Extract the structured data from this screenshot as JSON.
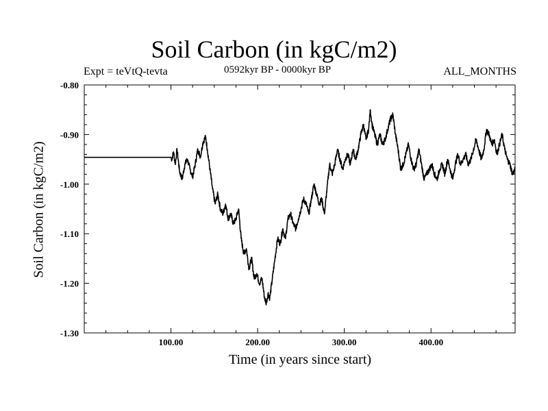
{
  "chart_data": {
    "type": "line",
    "title": "Soil Carbon (in kgC/m2)",
    "experiment_label": "Expt = teVtQ-tevta",
    "period_label": "0592kyr BP - 0000kyr BP",
    "months_label": "ALL_MONTHS",
    "xlabel": "Time (in years since start)",
    "ylabel": "Soil Carbon (in kgC/m2)",
    "xlim": [
      0,
      497
    ],
    "ylim": [
      -1.3,
      -0.8
    ],
    "x_ticks": [
      100,
      200,
      300,
      400
    ],
    "x_tick_labels": [
      "100.00",
      "200.00",
      "300.00",
      "400.00"
    ],
    "y_ticks": [
      -0.8,
      -0.9,
      -1.0,
      -1.1,
      -1.2,
      -1.3
    ],
    "y_tick_labels": [
      "-0.80",
      "-0.90",
      "-1.00",
      "-1.10",
      "-1.20",
      "-1.30"
    ],
    "grid": false,
    "series": [
      {
        "color": "#000000",
        "x": [
          0,
          100,
          101,
          103,
          105,
          107,
          110,
          113,
          116,
          119,
          122,
          125,
          128,
          131,
          134,
          137,
          140,
          142,
          145,
          148,
          151,
          154,
          157,
          160,
          163,
          166,
          169,
          172,
          175,
          178,
          181,
          184,
          187,
          190,
          193,
          196,
          199,
          202,
          205,
          208,
          210,
          212,
          214,
          217,
          220,
          223,
          226,
          229,
          232,
          235,
          238,
          241,
          244,
          247,
          250,
          253,
          256,
          259,
          262,
          265,
          268,
          271,
          274,
          277,
          280,
          283,
          286,
          289,
          292,
          295,
          298,
          301,
          304,
          307,
          310,
          313,
          316,
          319,
          322,
          325,
          328,
          330,
          332,
          335,
          338,
          341,
          344,
          347,
          350,
          353,
          356,
          359,
          362,
          365,
          368,
          371,
          374,
          377,
          380,
          383,
          386,
          389,
          392,
          395,
          398,
          401,
          404,
          407,
          410,
          413,
          416,
          419,
          422,
          425,
          428,
          431,
          434,
          437,
          440,
          443,
          446,
          449,
          452,
          455,
          458,
          461,
          464,
          467,
          470,
          473,
          476,
          479,
          482,
          485,
          488,
          491,
          494,
          497
        ],
        "y": [
          -0.946,
          -0.946,
          -0.95,
          -0.935,
          -0.96,
          -0.93,
          -0.975,
          -0.99,
          -0.96,
          -0.95,
          -0.97,
          -0.985,
          -0.96,
          -0.93,
          -0.945,
          -0.915,
          -0.905,
          -0.93,
          -0.97,
          -1.01,
          -1.04,
          -1.02,
          -1.05,
          -1.06,
          -1.04,
          -1.07,
          -1.06,
          -1.08,
          -1.07,
          -1.05,
          -1.11,
          -1.14,
          -1.13,
          -1.17,
          -1.15,
          -1.19,
          -1.18,
          -1.2,
          -1.19,
          -1.23,
          -1.24,
          -1.22,
          -1.23,
          -1.19,
          -1.15,
          -1.11,
          -1.12,
          -1.09,
          -1.11,
          -1.07,
          -1.06,
          -1.08,
          -1.09,
          -1.07,
          -1.05,
          -1.03,
          -1.04,
          -1.06,
          -1.03,
          -1.0,
          -1.02,
          -1.04,
          -1.03,
          -1.06,
          -1.01,
          -0.96,
          -0.98,
          -0.96,
          -0.93,
          -0.95,
          -0.97,
          -0.95,
          -0.94,
          -0.96,
          -0.93,
          -0.95,
          -0.93,
          -0.9,
          -0.88,
          -0.91,
          -0.89,
          -0.85,
          -0.88,
          -0.9,
          -0.92,
          -0.9,
          -0.92,
          -0.91,
          -0.89,
          -0.87,
          -0.86,
          -0.9,
          -0.93,
          -0.97,
          -0.96,
          -0.94,
          -0.92,
          -0.95,
          -0.97,
          -0.96,
          -0.93,
          -0.96,
          -0.99,
          -0.98,
          -0.97,
          -0.96,
          -0.98,
          -0.99,
          -0.97,
          -0.96,
          -0.98,
          -0.95,
          -0.97,
          -0.99,
          -0.96,
          -0.94,
          -0.96,
          -0.95,
          -0.94,
          -0.96,
          -0.95,
          -0.93,
          -0.91,
          -0.93,
          -0.95,
          -0.93,
          -0.89,
          -0.9,
          -0.92,
          -0.91,
          -0.94,
          -0.92,
          -0.9,
          -0.93,
          -0.95,
          -0.96,
          -0.98,
          -0.97
        ]
      }
    ]
  }
}
